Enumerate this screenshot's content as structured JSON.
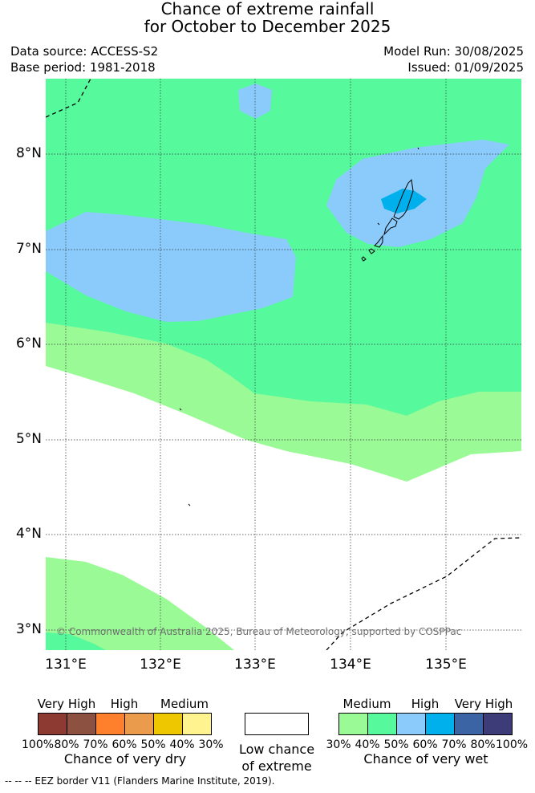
{
  "title": {
    "line1": "Chance of extreme rainfall",
    "line2": "for October to December 2025"
  },
  "meta": {
    "data_source": "Data source: ACCESS-S2",
    "base_period": "Base period: 1981-2018",
    "model_run": "Model Run: 30/08/2025",
    "issued": "Issued: 01/09/2025"
  },
  "map": {
    "lon_range": [
      130.7,
      135.8
    ],
    "lat_range": [
      2.8,
      8.8
    ],
    "lon_ticks": [
      "131°E",
      "132°E",
      "133°E",
      "134°E",
      "135°E"
    ],
    "lat_ticks": [
      "8°N",
      "7°N",
      "6°N",
      "5°N",
      "4°N",
      "3°N"
    ],
    "grid": true,
    "copyright": "© Commonwealth of Australia 2025, Bureau of Meteorology, supported by COSPPac",
    "colors": {
      "wet_30_40": "#99fa96",
      "wet_40_50": "#57f99d",
      "wet_50_60": "#8acbfb",
      "wet_60_70": "#00b0ec",
      "low_chance": "#ffffff",
      "eez_border": "#000000"
    }
  },
  "legend_dry": {
    "headings": [
      "Very High",
      "High",
      "Medium"
    ],
    "labels": [
      "100%",
      "80%",
      "70%",
      "60%",
      "50%",
      "40%",
      "30%"
    ],
    "colors": [
      "#8d3b32",
      "#8c5140",
      "#fe7f2c",
      "#eb9b4c",
      "#efc700",
      "#fef38f"
    ],
    "title": "Chance of very dry"
  },
  "legend_low": {
    "line1": "Low chance",
    "line2": "of extreme"
  },
  "legend_wet": {
    "headings": [
      "Medium",
      "High",
      "Very High"
    ],
    "labels": [
      "30%",
      "40%",
      "50%",
      "60%",
      "70%",
      "80%",
      "100%"
    ],
    "colors": [
      "#99fa96",
      "#57f99d",
      "#8acbfb",
      "#00b0ec",
      "#3a64a3",
      "#3e3b79"
    ],
    "title": "Chance of very wet"
  },
  "footnote": "-- -- -- EEZ border V11 (Flanders Marine Institute, 2019)."
}
